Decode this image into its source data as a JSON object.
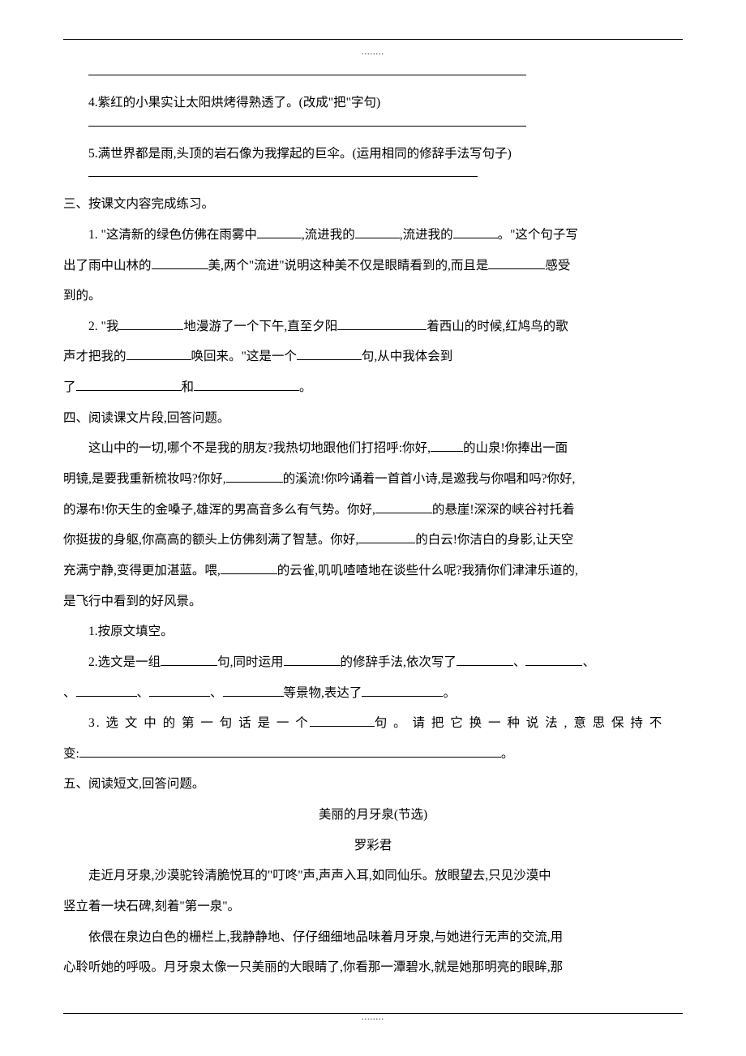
{
  "page": {
    "top_dots": "........",
    "bottom_dots": "........"
  },
  "lines": {
    "q4": "4.紫红的小果实让太阳烘烤得熟透了。(改成\"把\"字句)",
    "q5": "5.满世界都是雨,头顶的岩石像为我撑起的巨伞。(运用相同的修辞手法写句子)",
    "sec3_head": "三、按课文内容完成练习。",
    "s3_1a": "1. \"这清新的绿色仿佛在雨雾中",
    "s3_1b": ",流进我的",
    "s3_1c": ",流进我的",
    "s3_1d": "。\"这个句子写",
    "s3_1e": "出了雨中山林的",
    "s3_1f": "美,两个\"流进\"说明这种美不仅是眼睛看到的,而且是",
    "s3_1g": "感受",
    "s3_1h": "到的。",
    "s3_2a": "2. \"我",
    "s3_2b": "地漫游了一个下午,直至夕阳",
    "s3_2c": "着西山的时候,红鸠鸟的歌",
    "s3_2d": "声才把我的",
    "s3_2e": "唤回来。\"这是一个",
    "s3_2f": "句,从中我体会到",
    "s3_2g": "了",
    "s3_2h": "和",
    "s3_2i": "。",
    "sec4_head": "四、阅读课文片段,回答问题。",
    "s4_p1a": "这山中的一切,哪个不是我的朋友?我热切地跟他们打招呼:你好,",
    "s4_p1b": "的山泉!你捧出一面",
    "s4_p2a": "明镜,是要我重新梳妆吗?你好,",
    "s4_p2b": "的溪流!你吟诵着一首首小诗,是邀我与你唱和吗?你好,",
    "s4_p3a": "的瀑布!你天生的金嗓子,雄浑的男高音多么有气势。你好,",
    "s4_p3b": "的悬崖!深深的峡谷衬托着",
    "s4_p4a": "你挺拔的身躯,你高高的额头上仿佛刻满了智慧。你好,",
    "s4_p4b": "的白云!你洁白的身影,让天空",
    "s4_p5a": "充满宁静,变得更加湛蓝。喂,",
    "s4_p5b": "的云雀,叽叽喳喳地在谈些什么呢?我猜你们津津乐道的,",
    "s4_p6": "是飞行中看到的好风景。",
    "s4_q1": "1.按原文填空。",
    "s4_q2a": "2.选文是一组",
    "s4_q2b": "句,同时运用",
    "s4_q2c": "的修辞手法,依次写了",
    "s4_q2d": "、",
    "s4_q2e": "、",
    "s4_q2f": "、",
    "s4_q2g": "、",
    "s4_q2h": "、",
    "s4_q2i": "等景物,表达了",
    "s4_q2j": "。",
    "s4_q3a": "3. 选 文 中 的 第 一 句 话 是 一 个",
    "s4_q3b": "句 。 请 把 它 换 一 种 说 法 , 意 思 保 持 不",
    "s4_q3c": "变:",
    "s4_q3d": "。",
    "sec5_head": "五、阅读短文,回答问题。",
    "s5_title": "美丽的月牙泉(节选)",
    "s5_author": "罗彩君",
    "s5_p1": "走近月牙泉,沙漠驼铃清脆悦耳的\"叮咚\"声,声声入耳,如同仙乐。放眼望去,只见沙漠中",
    "s5_p1b": "竖立着一块石碑,刻着\"第一泉\"。",
    "s5_p2": "依偎在泉边白色的栅栏上,我静静地、仔仔细细地品味着月牙泉,与她进行无声的交流,用",
    "s5_p2b": "心聆听她的呼吸。月牙泉太像一只美丽的大眼睛了,你看那一潭碧水,就是她那明亮的眼眸,那"
  }
}
